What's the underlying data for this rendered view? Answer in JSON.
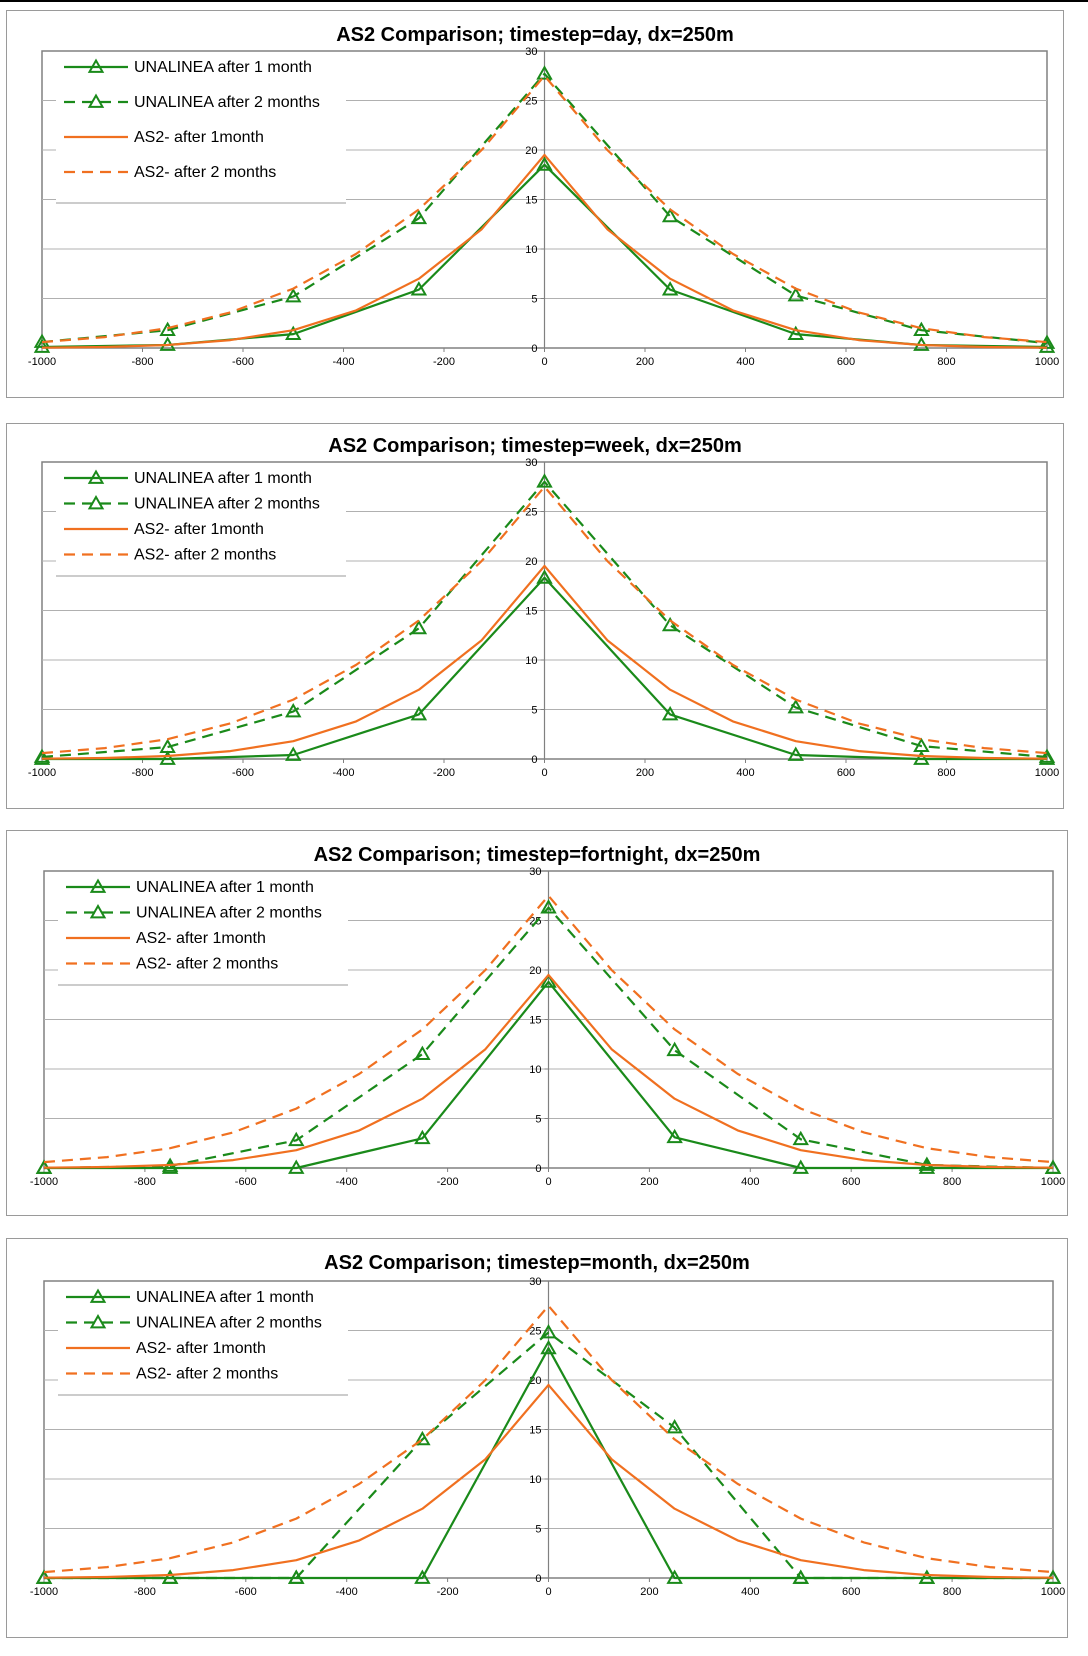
{
  "colors": {
    "unalinea": "#1a8a1a",
    "as2": "#f07020",
    "grid": "#808080",
    "axis": "#808080"
  },
  "chart_data": [
    {
      "type": "line",
      "title": "AS2 Comparison; timestep=day, dx=250m",
      "xlim": [
        -1000,
        1000
      ],
      "ylim": [
        0,
        30
      ],
      "x_ticks": [
        "-1000",
        "-800",
        "-600",
        "-400",
        "-200",
        "0",
        "200",
        "400",
        "600",
        "800",
        "1000"
      ],
      "y_ticks": [
        "0",
        "5",
        "10",
        "15",
        "20",
        "25",
        "30"
      ],
      "grid": "horizontal",
      "legend_position": "top-left",
      "series": [
        {
          "name": "UNALINEA after 1 month",
          "style": "solid",
          "color": "#1a8a1a",
          "marker": "triangle",
          "x": [
            -1000,
            -750,
            -500,
            -250,
            0,
            250,
            500,
            750,
            1000
          ],
          "y": [
            0.1,
            0.3,
            1.4,
            5.9,
            18.5,
            5.9,
            1.4,
            0.3,
            0.1
          ]
        },
        {
          "name": "UNALINEA after 2 months",
          "style": "dashed",
          "color": "#1a8a1a",
          "marker": "triangle",
          "x": [
            -1000,
            -750,
            -500,
            -250,
            0,
            250,
            500,
            750,
            1000
          ],
          "y": [
            0.6,
            1.8,
            5.2,
            13.1,
            27.7,
            13.3,
            5.3,
            1.8,
            0.5
          ]
        },
        {
          "name": "AS2- after 1month",
          "style": "solid",
          "color": "#f07020",
          "marker": "none",
          "x": [
            -1000,
            -875,
            -750,
            -625,
            -500,
            -375,
            -250,
            -125,
            0,
            125,
            250,
            375,
            500,
            625,
            750,
            875,
            1000
          ],
          "y": [
            0.03,
            0.1,
            0.3,
            0.8,
            1.8,
            3.8,
            7.0,
            12.0,
            19.5,
            12.0,
            7.0,
            3.8,
            1.8,
            0.8,
            0.3,
            0.1,
            0.03
          ]
        },
        {
          "name": "AS2- after 2 months",
          "style": "dashed",
          "color": "#f07020",
          "marker": "none",
          "x": [
            -1000,
            -875,
            -750,
            -625,
            -500,
            -375,
            -250,
            -125,
            0,
            125,
            250,
            375,
            500,
            625,
            750,
            875,
            1000
          ],
          "y": [
            0.6,
            1.1,
            2.0,
            3.6,
            6.0,
            9.5,
            14.0,
            20.0,
            27.5,
            20.0,
            14.0,
            9.5,
            6.0,
            3.6,
            2.0,
            1.1,
            0.6
          ]
        }
      ]
    },
    {
      "type": "line",
      "title": "AS2 Comparison; timestep=week, dx=250m",
      "xlim": [
        -1000,
        1000
      ],
      "ylim": [
        0,
        30
      ],
      "x_ticks": [
        "-1000",
        "-800",
        "-600",
        "-400",
        "-200",
        "0",
        "200",
        "400",
        "600",
        "800",
        "1000"
      ],
      "y_ticks": [
        "0",
        "5",
        "10",
        "15",
        "20",
        "25",
        "30"
      ],
      "grid": "horizontal",
      "legend_position": "top-left",
      "series": [
        {
          "name": "UNALINEA after 1 month",
          "style": "solid",
          "color": "#1a8a1a",
          "marker": "triangle",
          "x": [
            -1000,
            -750,
            -500,
            -250,
            0,
            250,
            500,
            750,
            1000
          ],
          "y": [
            0.0,
            0.0,
            0.4,
            4.5,
            18.3,
            4.5,
            0.4,
            0.0,
            0.0
          ]
        },
        {
          "name": "UNALINEA after 2 months",
          "style": "dashed",
          "color": "#1a8a1a",
          "marker": "triangle",
          "x": [
            -1000,
            -750,
            -500,
            -250,
            0,
            250,
            500,
            750,
            1000
          ],
          "y": [
            0.2,
            1.2,
            4.8,
            13.2,
            28.0,
            13.5,
            5.2,
            1.3,
            0.2
          ]
        },
        {
          "name": "AS2- after 1month",
          "style": "solid",
          "color": "#f07020",
          "marker": "none",
          "x": [
            -1000,
            -875,
            -750,
            -625,
            -500,
            -375,
            -250,
            -125,
            0,
            125,
            250,
            375,
            500,
            625,
            750,
            875,
            1000
          ],
          "y": [
            0.03,
            0.1,
            0.3,
            0.8,
            1.8,
            3.8,
            7.0,
            12.0,
            19.5,
            12.0,
            7.0,
            3.8,
            1.8,
            0.8,
            0.3,
            0.1,
            0.03
          ]
        },
        {
          "name": "AS2- after 2 months",
          "style": "dashed",
          "color": "#f07020",
          "marker": "none",
          "x": [
            -1000,
            -875,
            -750,
            -625,
            -500,
            -375,
            -250,
            -125,
            0,
            125,
            250,
            375,
            500,
            625,
            750,
            875,
            1000
          ],
          "y": [
            0.6,
            1.1,
            2.0,
            3.6,
            6.0,
            9.5,
            14.0,
            20.0,
            27.5,
            20.0,
            14.0,
            9.5,
            6.0,
            3.6,
            2.0,
            1.1,
            0.6
          ]
        }
      ]
    },
    {
      "type": "line",
      "title": "AS2 Comparison; timestep=fortnight, dx=250m",
      "xlim": [
        -1000,
        1000
      ],
      "ylim": [
        0,
        30
      ],
      "x_ticks": [
        "-1000",
        "-800",
        "-600",
        "-400",
        "-200",
        "0",
        "200",
        "400",
        "600",
        "800",
        "1000"
      ],
      "y_ticks": [
        "0",
        "5",
        "10",
        "15",
        "20",
        "25",
        "30"
      ],
      "grid": "horizontal",
      "legend_position": "top-left",
      "series": [
        {
          "name": "UNALINEA after 1 month",
          "style": "solid",
          "color": "#1a8a1a",
          "marker": "triangle",
          "x": [
            -1000,
            -750,
            -500,
            -250,
            0,
            250,
            500,
            750,
            1000
          ],
          "y": [
            0.0,
            0.0,
            0.0,
            3.0,
            18.8,
            3.1,
            0.0,
            0.0,
            0.0
          ]
        },
        {
          "name": "UNALINEA after 2 months",
          "style": "dashed",
          "color": "#1a8a1a",
          "marker": "triangle",
          "x": [
            -1000,
            -750,
            -500,
            -250,
            0,
            250,
            500,
            750,
            1000
          ],
          "y": [
            0.0,
            0.2,
            2.8,
            11.5,
            26.3,
            11.9,
            2.9,
            0.3,
            0.0
          ]
        },
        {
          "name": "AS2- after 1month",
          "style": "solid",
          "color": "#f07020",
          "marker": "none",
          "x": [
            -1000,
            -875,
            -750,
            -625,
            -500,
            -375,
            -250,
            -125,
            0,
            125,
            250,
            375,
            500,
            625,
            750,
            875,
            1000
          ],
          "y": [
            0.03,
            0.1,
            0.3,
            0.8,
            1.8,
            3.8,
            7.0,
            12.0,
            19.5,
            12.0,
            7.0,
            3.8,
            1.8,
            0.8,
            0.3,
            0.1,
            0.03
          ]
        },
        {
          "name": "AS2- after 2 months",
          "style": "dashed",
          "color": "#f07020",
          "marker": "none",
          "x": [
            -1000,
            -875,
            -750,
            -625,
            -500,
            -375,
            -250,
            -125,
            0,
            125,
            250,
            375,
            500,
            625,
            750,
            875,
            1000
          ],
          "y": [
            0.6,
            1.1,
            2.0,
            3.6,
            6.0,
            9.5,
            14.0,
            20.0,
            27.5,
            20.0,
            14.0,
            9.5,
            6.0,
            3.6,
            2.0,
            1.1,
            0.6
          ]
        }
      ]
    },
    {
      "type": "line",
      "title": "AS2 Comparison; timestep=month, dx=250m",
      "xlim": [
        -1000,
        1000
      ],
      "ylim": [
        0,
        30
      ],
      "x_ticks": [
        "-1000",
        "-800",
        "-600",
        "-400",
        "-200",
        "0",
        "200",
        "400",
        "600",
        "800",
        "1000"
      ],
      "y_ticks": [
        "0",
        "5",
        "10",
        "15",
        "20",
        "25",
        "30"
      ],
      "grid": "horizontal",
      "legend_position": "top-left",
      "series": [
        {
          "name": "UNALINEA after 1 month",
          "style": "solid",
          "color": "#1a8a1a",
          "marker": "triangle",
          "x": [
            -1000,
            -750,
            -500,
            -250,
            0,
            250,
            500,
            750,
            1000
          ],
          "y": [
            0.0,
            0.0,
            0.0,
            0.0,
            23.2,
            0.0,
            0.0,
            0.0,
            0.0
          ]
        },
        {
          "name": "UNALINEA after 2 months",
          "style": "dashed",
          "color": "#1a8a1a",
          "marker": "triangle",
          "x": [
            -1000,
            -750,
            -500,
            -250,
            0,
            250,
            500,
            750,
            1000
          ],
          "y": [
            0.0,
            0.0,
            0.0,
            14.0,
            24.8,
            15.2,
            0.0,
            0.0,
            0.0
          ]
        },
        {
          "name": "AS2- after 1month",
          "style": "solid",
          "color": "#f07020",
          "marker": "none",
          "x": [
            -1000,
            -875,
            -750,
            -625,
            -500,
            -375,
            -250,
            -125,
            0,
            125,
            250,
            375,
            500,
            625,
            750,
            875,
            1000
          ],
          "y": [
            0.03,
            0.1,
            0.3,
            0.8,
            1.8,
            3.8,
            7.0,
            12.0,
            19.5,
            12.0,
            7.0,
            3.8,
            1.8,
            0.8,
            0.3,
            0.1,
            0.03
          ]
        },
        {
          "name": "AS2- after 2 months",
          "style": "dashed",
          "color": "#f07020",
          "marker": "none",
          "x": [
            -1000,
            -875,
            -750,
            -625,
            -500,
            -375,
            -250,
            -125,
            0,
            125,
            250,
            375,
            500,
            625,
            750,
            875,
            1000
          ],
          "y": [
            0.6,
            1.1,
            2.0,
            3.6,
            6.0,
            9.5,
            14.0,
            20.0,
            27.5,
            20.0,
            14.0,
            9.5,
            6.0,
            3.6,
            2.0,
            1.1,
            0.6
          ]
        }
      ]
    }
  ]
}
